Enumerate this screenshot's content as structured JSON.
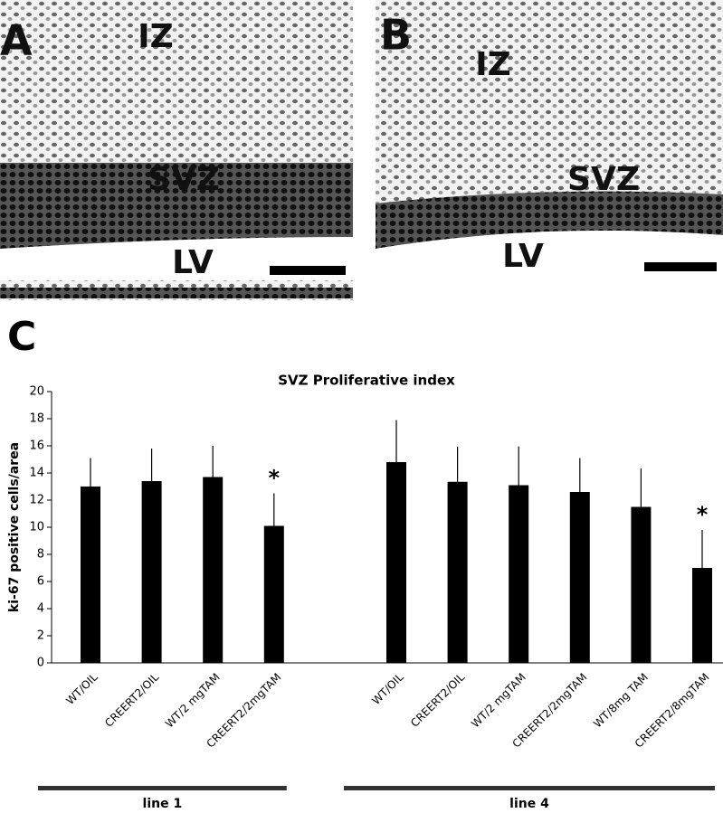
{
  "micrographs": [
    {
      "label": "A",
      "regions": [
        "IZ",
        "SVZ",
        "LV"
      ]
    },
    {
      "label": "B",
      "regions": [
        "IZ",
        "SVZ",
        "LV"
      ]
    }
  ],
  "panel_label": "C",
  "chart_data": {
    "type": "bar",
    "title": "SVZ Proliferative index",
    "y_label": "ki-67 positive cells/area",
    "categories": [
      "WT/OIL",
      "CREERT2/OIL",
      "WT/2 mgTAM",
      "CREERT2/2mgTAM",
      null,
      "WT/OIL",
      "CREERT2/OIL",
      "WT/2 mgTAM",
      "CREERT2/2mgTAM",
      "WT/8mg TAM",
      "CREERT2/8mgTAM"
    ],
    "values": [
      13,
      13.4,
      13.7,
      10.1,
      null,
      14.8,
      13.35,
      13.1,
      12.6,
      11.5,
      7.0
    ],
    "errors": [
      2.1,
      2.4,
      2.3,
      2.4,
      null,
      3.1,
      2.6,
      2.85,
      2.5,
      2.85,
      2.8
    ],
    "annotations": [
      null,
      null,
      null,
      "*",
      null,
      null,
      null,
      null,
      null,
      null,
      "*"
    ],
    "groups": [
      "line 1",
      "line 4"
    ],
    "color": "#000000",
    "ylim": [
      0,
      20
    ],
    "yticks": [
      0,
      2,
      4,
      6,
      8,
      10,
      12,
      14,
      16,
      18,
      20
    ],
    "grid": false
  }
}
